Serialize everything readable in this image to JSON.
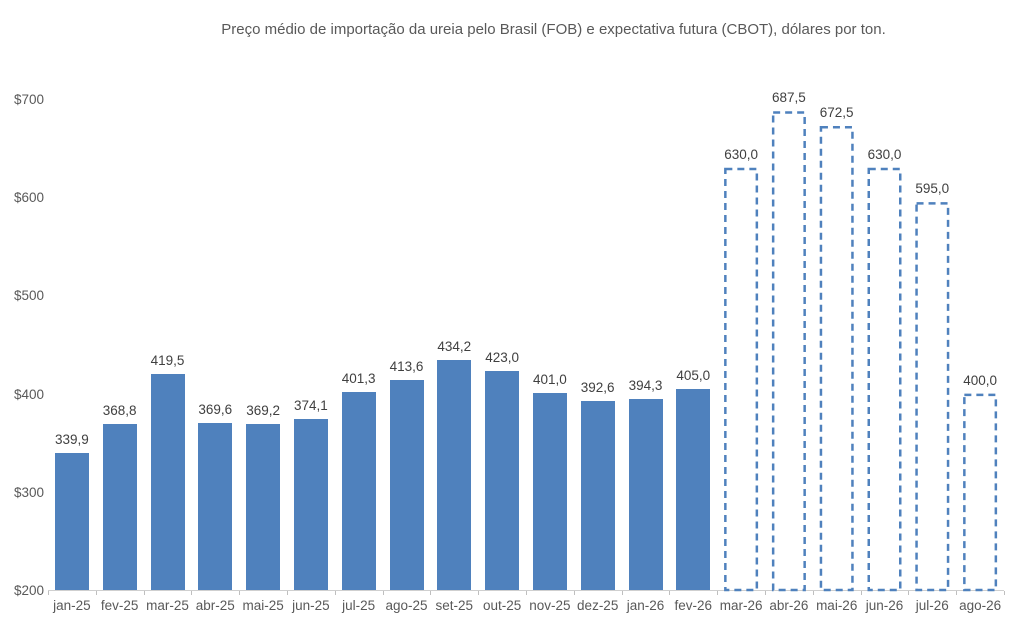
{
  "title": "Preço médio de importação da ureia pelo Brasil (FOB) e expectativa futura (CBOT), dólares por ton.",
  "colors": {
    "bar_fill": "#4F81BD",
    "bar_outline": "#4F81BD",
    "title_text": "#595959",
    "axis_text": "#595959",
    "data_label_text": "#404040",
    "axis_line": "#CFCFCF",
    "background": "#FFFFFF"
  },
  "chart_data": {
    "type": "bar",
    "title": "Preço médio de importação da ureia pelo Brasil (FOB) e expectativa futura (CBOT), dólares por ton.",
    "xlabel": "",
    "ylabel": "",
    "ylim": [
      200,
      700
    ],
    "grid": false,
    "legend": "none",
    "categories": [
      "jan-25",
      "fev-25",
      "mar-25",
      "abr-25",
      "mai-25",
      "jun-25",
      "jul-25",
      "ago-25",
      "set-25",
      "out-25",
      "nov-25",
      "dez-25",
      "jan-26",
      "fev-26",
      "mar-26",
      "abr-26",
      "mai-26",
      "jun-26",
      "jul-26",
      "ago-26"
    ],
    "series": [
      {
        "name": "FOB",
        "style": "solid",
        "values": [
          339.9,
          368.8,
          419.5,
          369.6,
          369.2,
          374.1,
          401.3,
          413.6,
          434.2,
          423.0,
          401.0,
          392.6,
          394.3,
          405.0,
          null,
          null,
          null,
          null,
          null,
          null
        ]
      },
      {
        "name": "CBOT",
        "style": "dashed-outline",
        "values": [
          null,
          null,
          null,
          null,
          null,
          null,
          null,
          null,
          null,
          null,
          null,
          null,
          null,
          null,
          630.0,
          687.5,
          672.5,
          630.0,
          595.0,
          400.0
        ]
      }
    ],
    "data_labels": [
      "339,9",
      "368,8",
      "419,5",
      "369,6",
      "369,2",
      "374,1",
      "401,3",
      "413,6",
      "434,2",
      "423,0",
      "401,0",
      "392,6",
      "394,3",
      "405,0",
      "630,0",
      "687,5",
      "672,5",
      "630,0",
      "595,0",
      "400,0"
    ],
    "yticks": [
      {
        "label": "$200",
        "value": 200
      },
      {
        "label": "$300",
        "value": 300
      },
      {
        "label": "$400",
        "value": 400
      },
      {
        "label": "$500",
        "value": 500
      },
      {
        "label": "$600",
        "value": 600
      },
      {
        "label": "$700",
        "value": 700
      }
    ]
  }
}
